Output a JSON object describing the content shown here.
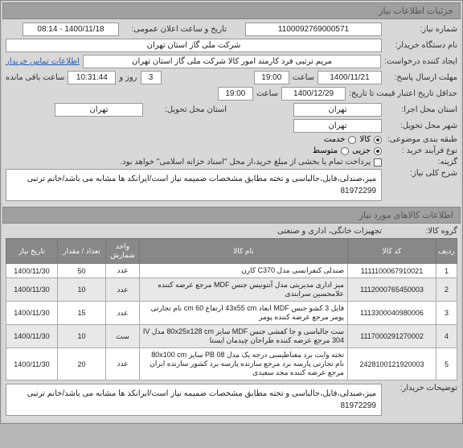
{
  "sections": {
    "need_info": "جزئیات اطلاعات نیاز",
    "goods_info": "اطلاعات کالاهای مورد نیاز"
  },
  "labels": {
    "need_no": "شماره نیاز:",
    "buyer_org": "نام دستگاه خریدار:",
    "creator": "ایجاد کننده درخواست:",
    "response_deadline": "مهلت ارسال پاسخ:",
    "validity_deadline": "حداقل تاریخ اعتبار قیمت تا تاریخ:",
    "prov_exec": "استان محل اجرا:",
    "city_d": "شهر محل تحویل:",
    "proc_type": "نوع فرآیند خرید :",
    "purpose": "گزینه:",
    "desc": "شرح کلی نیاز:",
    "goods_group": "گروه کالا:",
    "buyer_notes": "توضیحات خریدار:",
    "saat": "ساعت",
    "rooz_va": "روز و",
    "baghi": "ساعت باقی مانده",
    "public_dt": "تاریخ و ساعت اعلان عمومی:",
    "contact": "اطلاعات تماس خریدار",
    "pay_note": "پرداخت تمام یا بخشی از مبلغ خرید،از محل \"اسناد خزانه اسلامی\" خواهد بود.",
    "topic_class": "طبقه بندی موضوعی:",
    "prov_del": "استان محل تحویل:"
  },
  "values": {
    "need_no": "1100092769000571",
    "buyer_org": "شرکت ملی گاز استان تهران",
    "creator": "مریم ترتبی فرد کارمند امور کالا شرکت ملی گاز استان تهران",
    "resp_date": "1400/11/21",
    "resp_time": "19:00",
    "remain_days": "3",
    "remain_hms": "10:31:44",
    "valid_date": "1400/12/29",
    "valid_time": "19:00",
    "prov_exec": "تهران",
    "city_d": "تهران",
    "prov_del": "تهران",
    "public_dt": "1400/11/18 - 08:14",
    "radio_goods": "کالا",
    "radio_service": "خدمت",
    "proc_low": "جزیی",
    "proc_mid": "متوسط",
    "desc": "میز،صندلی،فایل،جالباسی و تخته مطابق مشخصات ضمیمه نیاز است/ایرانکد ها مشابه می باشد/خانم ترتبی 81972299",
    "goods_group": "تجهیزات خانگی، اداری و صنعتی",
    "buyer_notes": "میز،صندلی،فایل،جالباسی و تخته مطابق مشخصات ضمیمه نیاز است/ایرانکد ها مشابه می باشد/خانم ترتبی 81972299"
  },
  "table": {
    "headers": {
      "rn": "ردیف",
      "code": "کد کالا",
      "name": "نام کالا",
      "unit": "واحد شمارش",
      "qty": "تعداد / مقدار",
      "date": "تاریخ نیاز"
    },
    "rows": [
      {
        "rn": "1",
        "code": "1111100067910021",
        "name": "صندلی کنفرانسی مدل C370 کارن",
        "unit": "عدد",
        "qty": "50",
        "date": "1400/11/30"
      },
      {
        "rn": "2",
        "code": "1112000765450003",
        "name": "میز اداری مدیریتی مدل آنتونیس جنس MDF مرجع عرضه کننده علامحسین سرابندی",
        "unit": "عدد",
        "qty": "10",
        "date": "1400/11/30"
      },
      {
        "rn": "3",
        "code": "1113300040980006",
        "name": "فایل 3 کشو جنس MDF ابعاد 43x55 cm ارتفاع 60 cm نام تجارتی پومر مرجع عرضه کننده پومر",
        "unit": "عدد",
        "qty": "15",
        "date": "1400/11/30"
      },
      {
        "rn": "4",
        "code": "1117000291270002",
        "name": "ست جالباسی و جا کفشی جنس MDF سایز 80x25x128 cm مدل IV 304 مرجع عرضه کننده طراحان چیدمان ایستا",
        "unit": "ست",
        "qty": "10",
        "date": "1400/11/30"
      },
      {
        "rn": "5",
        "code": "2428100121920003",
        "name": "تخته وایت برد مغناطیسی درجه یک مدل PB 08 سایز 80x100 cm نام تجارتی پارسه برد مرجع سازنده پارسه برد کشور سازنده ایران مرجع عرضه کننده مجد سعیدی",
        "unit": "عدد",
        "qty": "20",
        "date": "1400/11/30"
      }
    ]
  }
}
